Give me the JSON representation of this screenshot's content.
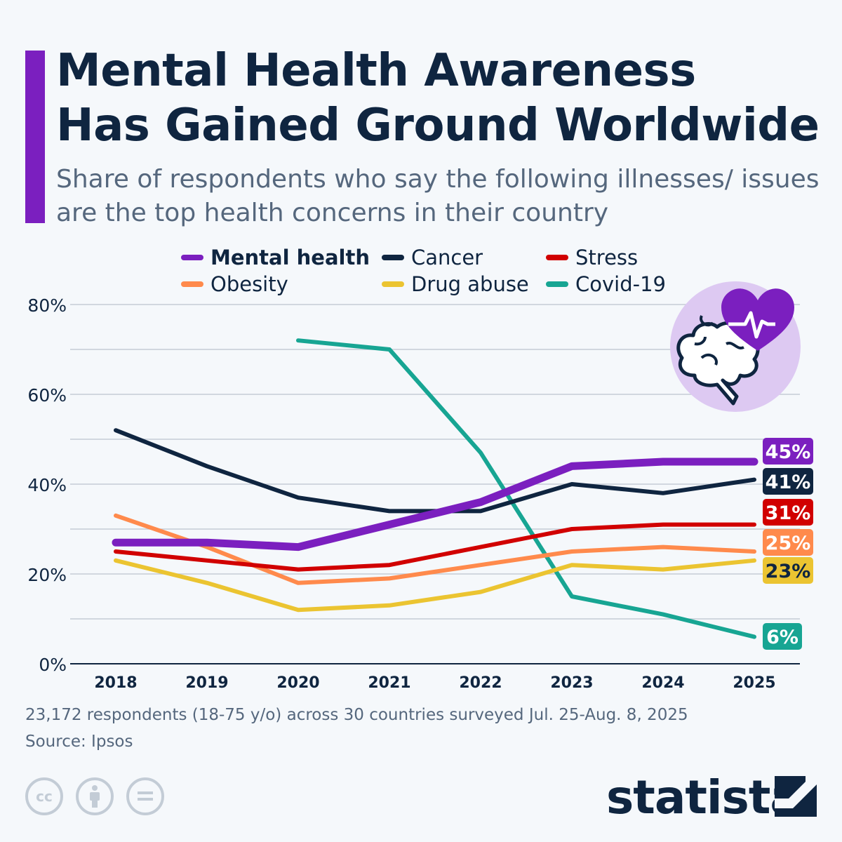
{
  "title_line1": "Mental Health Awareness",
  "title_line2": "Has Gained Ground Worldwide",
  "subtitle": "Share of respondents who say the following illnesses/ issues are the top health concerns in their country",
  "footnote": "23,172 respondents (18-75 y/o) across 30 countries surveyed Jul. 25-Aug. 8, 2025",
  "source": "Source: Ipsos",
  "brand": "statista",
  "icons": [
    "brain-heart-illustration",
    "creative-commons-icon",
    "attribution-icon",
    "no-derivatives-icon",
    "statista-logo-icon"
  ],
  "chart_data": {
    "type": "line",
    "x": [
      "2018",
      "2019",
      "2020",
      "2021",
      "2022",
      "2023",
      "2024",
      "2025"
    ],
    "ylim": [
      0,
      80
    ],
    "yticks": [
      "0%",
      "20%",
      "40%",
      "60%",
      "80%"
    ],
    "grid": true,
    "legend_position": "top",
    "series": [
      {
        "name": "Mental health",
        "color": "#7b1fbf",
        "bold": true,
        "values": [
          27,
          27,
          26,
          31,
          36,
          44,
          45,
          45
        ],
        "end_label": "45%"
      },
      {
        "name": "Cancer",
        "color": "#0f2540",
        "values": [
          52,
          44,
          37,
          34,
          34,
          40,
          38,
          41
        ],
        "end_label": "41%"
      },
      {
        "name": "Stress",
        "color": "#d10000",
        "values": [
          25,
          23,
          21,
          22,
          26,
          30,
          31,
          31
        ],
        "end_label": "31%"
      },
      {
        "name": "Obesity",
        "color": "#ff8a4c",
        "values": [
          33,
          26,
          18,
          19,
          22,
          25,
          26,
          25
        ],
        "end_label": "25%"
      },
      {
        "name": "Drug abuse",
        "color": "#ebc431",
        "values": [
          23,
          18,
          12,
          13,
          16,
          22,
          21,
          23
        ],
        "end_label": "23%"
      },
      {
        "name": "Covid-19",
        "color": "#17a593",
        "values": [
          null,
          null,
          72,
          70,
          47,
          15,
          11,
          6
        ],
        "end_label": "6%"
      }
    ]
  }
}
